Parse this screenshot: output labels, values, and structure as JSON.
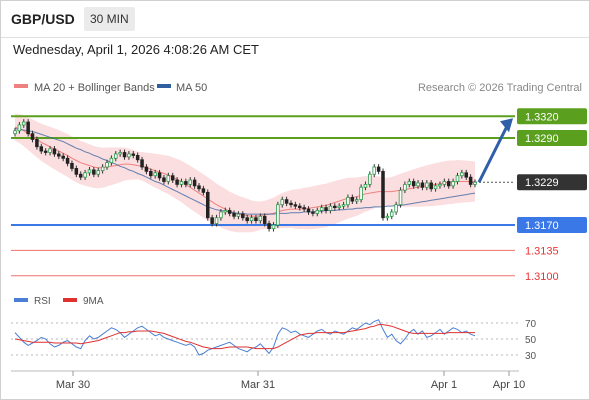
{
  "header": {
    "pair": "GBP/USD",
    "timeframe": "30 MIN",
    "datetime": "Wednesday, April 1, 2026 4:08:26 AM CET"
  },
  "legend": {
    "ma20": "MA 20 + Bollinger Bands",
    "ma50": "MA 50",
    "credit": "Research © 2026 Trading Central",
    "ma20_color": "#f08080",
    "ma50_color": "#2f5f9f"
  },
  "rsi_legend": {
    "rsi": "RSI",
    "ma9": "9MA",
    "rsi_color": "#4a7fd4",
    "ma9_color": "#e0312f"
  },
  "levels": [
    {
      "label": "1.3320",
      "value": 1.332,
      "kind": "resistance",
      "color": "#5aa01e"
    },
    {
      "label": "1.3290",
      "value": 1.329,
      "kind": "resistance",
      "color": "#5aa01e"
    },
    {
      "label": "1.3229",
      "value": 1.3229,
      "kind": "last-price",
      "color": "#333333"
    },
    {
      "label": "1.3170",
      "value": 1.317,
      "kind": "pivot-support",
      "color": "#3b78e7"
    },
    {
      "label": "1.3135",
      "value": 1.3135,
      "kind": "support",
      "color": "#e83535"
    },
    {
      "label": "1.3100",
      "value": 1.31,
      "kind": "support",
      "color": "#e83535"
    }
  ],
  "x_axis": [
    "Mar 30",
    "Mar 31",
    "Apr 1",
    "Apr 10"
  ],
  "rsi_ticks": [
    "70",
    "50",
    "30"
  ],
  "chart_data": {
    "type": "candlestick",
    "interval": "30 min",
    "price_range": [
      1.309,
      1.333
    ],
    "close": [
      1.33,
      1.3308,
      1.3312,
      1.3296,
      1.3288,
      1.3278,
      1.3272,
      1.327,
      1.3275,
      1.3268,
      1.3265,
      1.3262,
      1.3255,
      1.3248,
      1.324,
      1.3236,
      1.3242,
      1.3246,
      1.324,
      1.3245,
      1.325,
      1.3256,
      1.3262,
      1.3268,
      1.327,
      1.3264,
      1.3268,
      1.3266,
      1.326,
      1.325,
      1.3244,
      1.3238,
      1.3242,
      1.3235,
      1.323,
      1.3238,
      1.3232,
      1.3226,
      1.323,
      1.3226,
      1.3232,
      1.3224,
      1.322,
      1.3215,
      1.318,
      1.3172,
      1.318,
      1.3188,
      1.319,
      1.3186,
      1.3182,
      1.3185,
      1.318,
      1.3176,
      1.318,
      1.3176,
      1.3182,
      1.3172,
      1.3165,
      1.317,
      1.3198,
      1.3205,
      1.32,
      1.3198,
      1.3196,
      1.3194,
      1.3192,
      1.3188,
      1.3186,
      1.319,
      1.3194,
      1.319,
      1.3196,
      1.3194,
      1.3196,
      1.3198,
      1.3208,
      1.3203,
      1.3205,
      1.3222,
      1.3226,
      1.324,
      1.325,
      1.3244,
      1.318,
      1.3182,
      1.3188,
      1.3198,
      1.3218,
      1.3226,
      1.323,
      1.3224,
      1.3228,
      1.3222,
      1.3228,
      1.322,
      1.3224,
      1.3226,
      1.323,
      1.3224,
      1.323,
      1.3238,
      1.3242,
      1.3236,
      1.3226,
      1.3229
    ],
    "ma20": [
      1.3305,
      1.3303,
      1.33,
      1.3296,
      1.3292,
      1.3288,
      1.3284,
      1.3281,
      1.3278,
      1.3275,
      1.3272,
      1.3269,
      1.3266,
      1.3262,
      1.3259,
      1.3256,
      1.3254,
      1.3252,
      1.325,
      1.3249,
      1.3249,
      1.325,
      1.3251,
      1.3252,
      1.3253,
      1.3254,
      1.3254,
      1.3253,
      1.3252,
      1.3251,
      1.3249,
      1.3247,
      1.3245,
      1.3243,
      1.3241,
      1.3239,
      1.3236,
      1.3233,
      1.323,
      1.3226,
      1.3222,
      1.3218,
      1.3214,
      1.321,
      1.3206,
      1.3202,
      1.3198,
      1.3195,
      1.3192,
      1.3189,
      1.3187,
      1.3185,
      1.3184,
      1.3183,
      1.3182,
      1.3182,
      1.3183,
      1.3184,
      1.3185,
      1.3186,
      1.3188,
      1.319,
      1.3191,
      1.3192,
      1.3192,
      1.3192,
      1.3193,
      1.3193,
      1.3194,
      1.3195,
      1.3196,
      1.3197,
      1.3199,
      1.3201,
      1.3203,
      1.3205,
      1.3207,
      1.3208,
      1.3209,
      1.3211,
      1.3213,
      1.3214,
      1.3215,
      1.3216,
      1.3216,
      1.3216,
      1.3216,
      1.3217,
      1.3218,
      1.3219,
      1.322,
      1.3221,
      1.3222,
      1.3223,
      1.3224,
      1.3225,
      1.3226,
      1.3227,
      1.3228,
      1.3229,
      1.3229,
      1.323,
      1.323,
      1.323,
      1.323,
      1.323
    ],
    "ma50": [
      1.3303,
      1.3302,
      1.3301,
      1.33,
      1.3299,
      1.3297,
      1.3295,
      1.3293,
      1.3291,
      1.3289,
      1.3287,
      1.3285,
      1.3282,
      1.3279,
      1.3276,
      1.3274,
      1.3271,
      1.3269,
      1.3266,
      1.3264,
      1.3261,
      1.3259,
      1.3256,
      1.3254,
      1.3251,
      1.3249,
      1.3246,
      1.3244,
      1.3241,
      1.3239,
      1.3236,
      1.3233,
      1.323,
      1.3228,
      1.3225,
      1.3222,
      1.3219,
      1.3216,
      1.3213,
      1.321,
      1.3207,
      1.3204,
      1.3201,
      1.3198,
      1.3195,
      1.3193,
      1.3191,
      1.319,
      1.3189,
      1.3188,
      1.3187,
      1.3186,
      1.3186,
      1.3185,
      1.3185,
      1.3185,
      1.3185,
      1.3185,
      1.3185,
      1.3185,
      1.3186,
      1.3186,
      1.3186,
      1.3187,
      1.3187,
      1.3187,
      1.3188,
      1.3188,
      1.3188,
      1.3189,
      1.3189,
      1.319,
      1.319,
      1.319,
      1.3191,
      1.3191,
      1.3192,
      1.3192,
      1.3193,
      1.3193,
      1.3194,
      1.3194,
      1.3195,
      1.3195,
      1.3195,
      1.3196,
      1.3196,
      1.3197,
      1.3197,
      1.3198,
      1.3199,
      1.32,
      1.3201,
      1.3202,
      1.3203,
      1.3204,
      1.3205,
      1.3206,
      1.3207,
      1.3208,
      1.3209,
      1.321,
      1.3211,
      1.3212,
      1.3213,
      1.3214
    ],
    "bb_width": 0.0025,
    "rsi": [
      58,
      52,
      46,
      42,
      45,
      48,
      52,
      50,
      44,
      40,
      42,
      46,
      48,
      44,
      40,
      38,
      48,
      54,
      50,
      52,
      56,
      60,
      64,
      62,
      58,
      52,
      56,
      60,
      64,
      66,
      62,
      58,
      54,
      56,
      52,
      50,
      48,
      46,
      44,
      42,
      44,
      40,
      30,
      32,
      36,
      38,
      40,
      42,
      44,
      46,
      42,
      38,
      36,
      34,
      38,
      40,
      44,
      38,
      32,
      40,
      56,
      64,
      62,
      58,
      60,
      56,
      54,
      52,
      56,
      60,
      62,
      58,
      56,
      60,
      58,
      56,
      60,
      64,
      62,
      66,
      70,
      68,
      72,
      74,
      62,
      52,
      56,
      48,
      44,
      50,
      58,
      62,
      56,
      60,
      52,
      54,
      58,
      62,
      56,
      60,
      64,
      62,
      58,
      60,
      56,
      54
    ],
    "rsi_ma9": [
      50,
      49,
      48,
      47,
      46,
      46,
      46,
      46,
      46,
      45,
      45,
      45,
      45,
      45,
      45,
      44,
      45,
      46,
      47,
      48,
      50,
      52,
      54,
      56,
      58,
      58,
      59,
      59,
      60,
      60,
      60,
      60,
      59,
      58,
      57,
      55,
      53,
      51,
      49,
      47,
      46,
      44,
      42,
      40,
      39,
      38,
      38,
      38,
      39,
      40,
      40,
      40,
      40,
      40,
      39,
      38,
      38,
      38,
      38,
      38,
      40,
      43,
      46,
      49,
      52,
      55,
      56,
      57,
      57,
      58,
      58,
      58,
      58,
      58,
      58,
      58,
      59,
      60,
      61,
      62,
      63,
      65,
      66,
      68,
      68,
      67,
      66,
      64,
      62,
      60,
      58,
      57,
      57,
      57,
      57,
      57,
      57,
      57,
      57,
      58,
      58,
      58,
      58,
      58,
      58,
      58
    ],
    "rsi_range": [
      10,
      80
    ],
    "projection": {
      "from": 1.3229,
      "to": 1.332,
      "direction": "up"
    }
  }
}
